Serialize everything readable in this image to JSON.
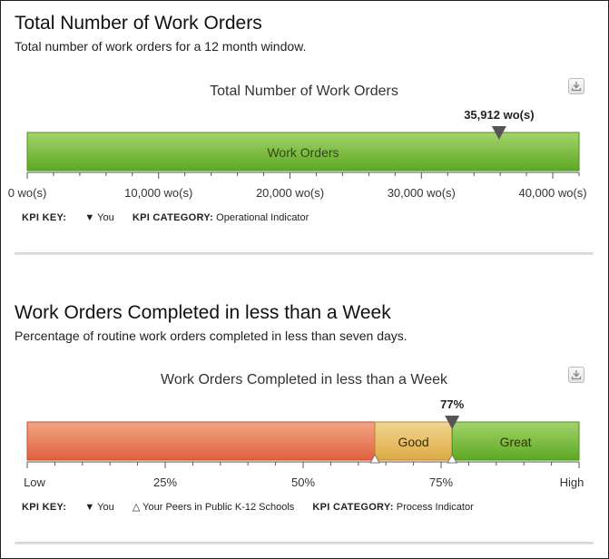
{
  "panels": [
    {
      "title": "Total Number of Work Orders",
      "description": "Total number of work orders for a 12 month window.",
      "chart_title": "Total Number of Work Orders",
      "kpi_key_label": "KPI KEY:",
      "you_label": "You",
      "kpi_category_label": "KPI CATEGORY:",
      "kpi_category_value": "Operational Indicator"
    },
    {
      "title": "Work Orders Completed in less than a Week",
      "description": "Percentage of routine work orders completed in less than seven days.",
      "chart_title": "Work Orders Completed in less than a Week",
      "kpi_key_label": "KPI KEY:",
      "you_label": "You",
      "peers_label": "Your Peers in Public K-12 Schools",
      "kpi_category_label": "KPI CATEGORY:",
      "kpi_category_value": "Process Indicator"
    }
  ],
  "icons": {
    "download": "download-icon",
    "you_marker": "down-triangle-icon",
    "peer_marker": "up-triangle-outline-icon"
  },
  "colors": {
    "green": "#5da823",
    "green_light": "#a3d46a",
    "red": "#e0603f",
    "red_light": "#f2a585",
    "gold": "#ddaa44",
    "gold_light": "#f2d591",
    "marker": "#555555"
  },
  "chart_data": [
    {
      "type": "bar",
      "orientation": "horizontal",
      "title": "Total Number of Work Orders",
      "bar_label": "Work Orders",
      "xlim": [
        0,
        42000
      ],
      "ticks": [
        0,
        10000,
        20000,
        30000,
        40000
      ],
      "tick_labels": [
        "0 wo(s)",
        "10,000 wo(s)",
        "20,000 wo(s)",
        "30,000 wo(s)",
        "40,000 wo(s)"
      ],
      "you_value": 35912,
      "you_label": "35,912 wo(s)"
    },
    {
      "type": "bar",
      "orientation": "horizontal",
      "title": "Work Orders Completed in less than a Week",
      "xlim": [
        0,
        100
      ],
      "ticks": [
        0,
        25,
        50,
        75,
        100
      ],
      "tick_labels": [
        "Low",
        "25%",
        "50%",
        "75%",
        "High"
      ],
      "bands": [
        {
          "label": "",
          "from": 0,
          "to": 63
        },
        {
          "label": "Good",
          "from": 63,
          "to": 77
        },
        {
          "label": "Great",
          "from": 77,
          "to": 100
        }
      ],
      "you_value": 77,
      "you_label": "77%",
      "peer_values": [
        63,
        77
      ]
    }
  ]
}
